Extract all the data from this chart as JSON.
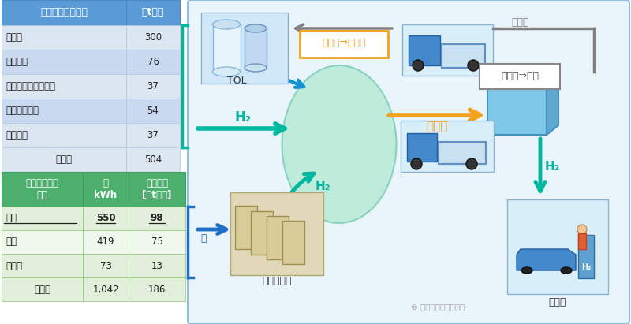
{
  "bg_color": "#ffffff",
  "table1_header": [
    "副生水素生産能力",
    "万t／年"
  ],
  "table1_rows": [
    [
      "煤气化",
      "300"
    ],
    [
      "焦炉尾气",
      "76"
    ],
    [
      "丙烷脱氢（ＰＤＨ）",
      "37"
    ],
    [
      "工乙烷裂解等",
      "54"
    ],
    [
      "氯碱行业",
      "37"
    ],
    [
      "合　計",
      "504"
    ]
  ],
  "table2_header": [
    "未利用可再生\n能源",
    "億\nkWh",
    "氢气换算\n[万t／年]"
  ],
  "table2_rows": [
    [
      "水电",
      "550",
      "98",
      true
    ],
    [
      "风电",
      "419",
      "75",
      false
    ],
    [
      "太阳能",
      "73",
      "13",
      false
    ],
    [
      "合　計",
      "1,042",
      "186",
      false
    ]
  ],
  "table1_header_color": "#5b9bd5",
  "table1_row_color1": "#dce6f1",
  "table1_row_color2": "#c9d9ef",
  "table1_total_color": "#dce6f1",
  "table2_header_color": "#4caf6e",
  "table2_row_color1": "#e2efda",
  "table2_row_color2": "#f0f8ee",
  "table2_total_color": "#e2efda",
  "arrow_teal": "#00b8a0",
  "arrow_orange": "#f4a21e",
  "arrow_gray": "#808080",
  "arrow_blue": "#1f6ec8",
  "tol_label": "TOL",
  "tol_mch_label": "ＴＯＬ⇒ＭＣＨ",
  "mch_label": "ＭＣＨ",
  "mch_h2_label": "ＭＣＨ⇒Ｈ２",
  "water_elec_label": "水电解制氢",
  "refuel_label": "加氢站",
  "watermark": "雪球：香橙会研究院",
  "tol_top_label": "ＴＯＬ"
}
